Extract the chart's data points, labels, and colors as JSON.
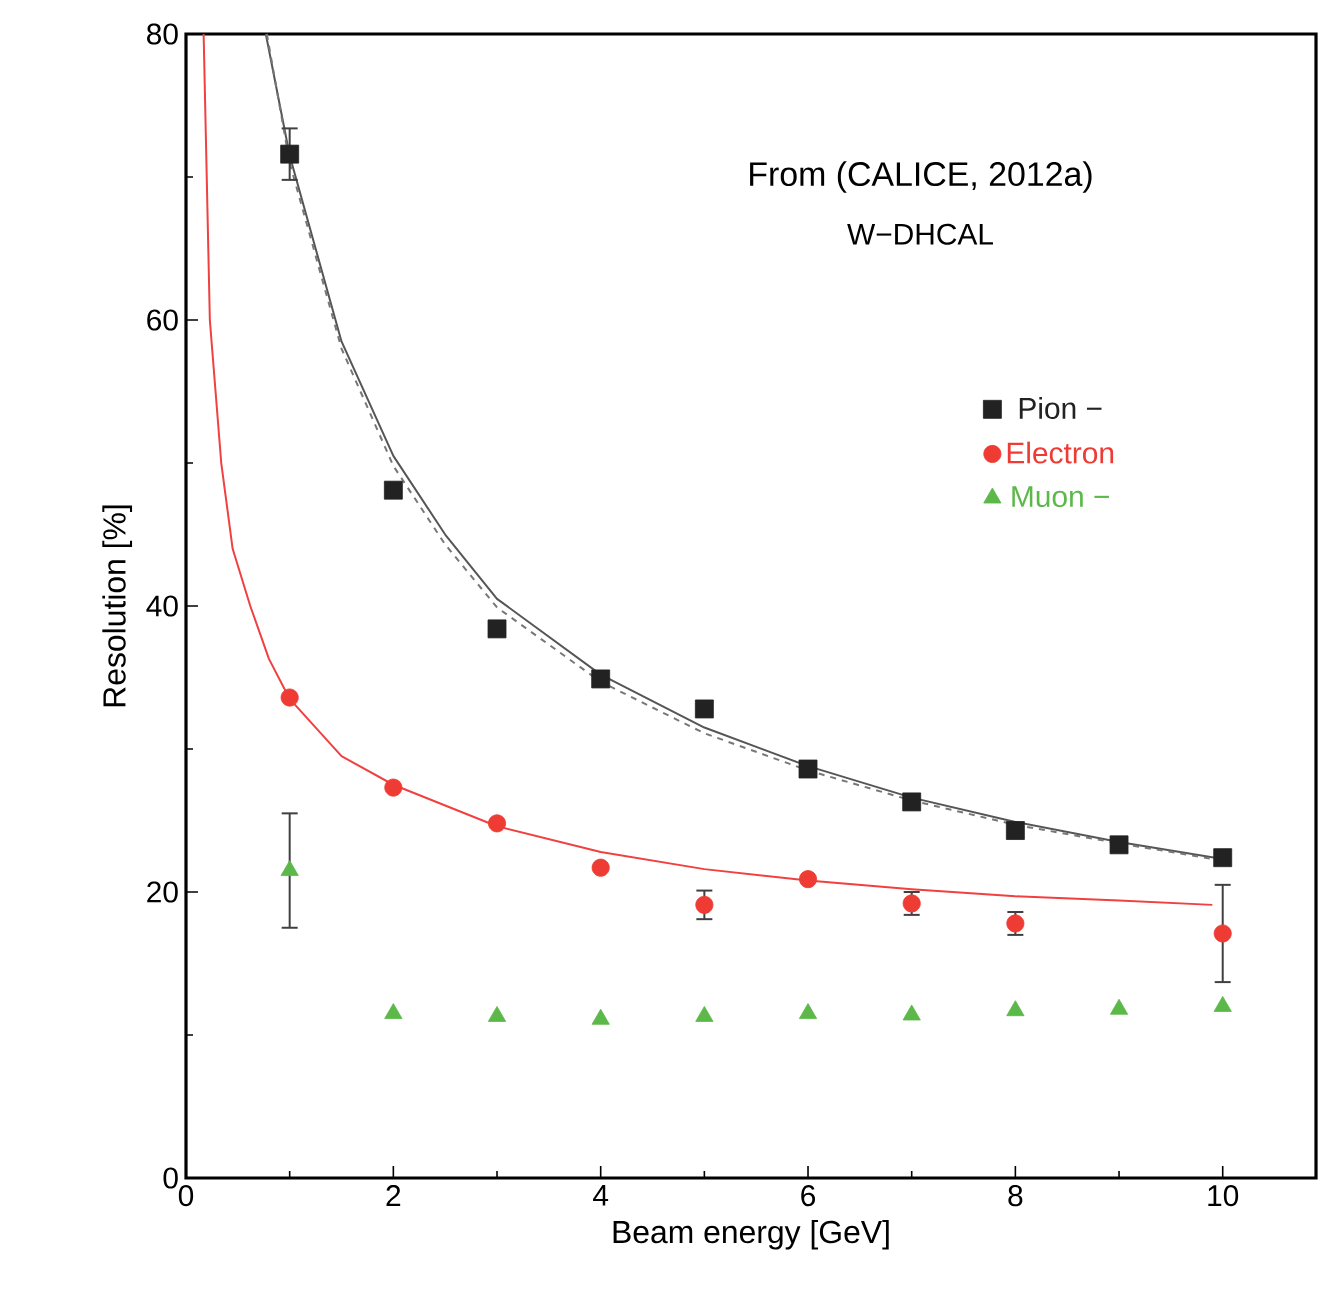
{
  "chart_data": {
    "type": "scatter",
    "xlabel": "Beam energy [GeV]",
    "ylabel": "Resolution [%]",
    "annotations": [
      "From (CALICE, 2012a)",
      "W−DHCAL"
    ],
    "x": [
      1,
      2,
      3,
      4,
      5,
      6,
      7,
      8,
      9,
      10
    ],
    "xlim": [
      0,
      10.9
    ],
    "ylim": [
      0,
      80
    ],
    "xticks": [
      0,
      2,
      4,
      6,
      8,
      10
    ],
    "yticks": [
      0,
      20,
      40,
      60,
      80
    ],
    "grid": false,
    "legend": "right",
    "series": [
      {
        "name": "Pion −",
        "color": "#222222",
        "marker": "square",
        "values": [
          71.6,
          48.1,
          38.4,
          34.9,
          32.8,
          28.6,
          26.3,
          24.3,
          23.3,
          22.4
        ],
        "errors": [
          1.8,
          null,
          null,
          null,
          null,
          null,
          null,
          null,
          null,
          null
        ]
      },
      {
        "name": "Electron",
        "color": "#ee3b33",
        "marker": "circle",
        "values": [
          33.6,
          27.3,
          24.8,
          21.7,
          19.1,
          20.9,
          19.2,
          17.8,
          null,
          17.1
        ],
        "errors": [
          null,
          null,
          null,
          null,
          1.0,
          null,
          0.8,
          0.8,
          null,
          3.4
        ]
      },
      {
        "name": "Muon −",
        "color": "#5cb848",
        "marker": "triangle",
        "values": [
          21.5,
          11.5,
          11.3,
          11.1,
          11.3,
          11.5,
          11.4,
          11.7,
          11.8,
          12.0
        ],
        "errors": [
          4.0,
          null,
          null,
          null,
          null,
          null,
          null,
          null,
          null,
          null
        ]
      },
      {
        "type": "line",
        "color": "#555555",
        "line_style": "solid",
        "x": [
          0.77,
          1,
          1.5,
          2,
          2.5,
          3,
          4,
          5,
          6,
          7,
          8,
          9,
          10
        ],
        "values": [
          80,
          71.5,
          58.5,
          50.5,
          45,
          40.5,
          35.2,
          31.5,
          28.8,
          26.6,
          24.9,
          23.5,
          22.3
        ]
      },
      {
        "type": "line",
        "color": "#777777",
        "line_style": "dashed",
        "x": [
          0.78,
          1,
          1.5,
          2,
          2.5,
          3,
          4,
          5,
          6,
          7,
          8,
          9,
          10
        ],
        "values": [
          80,
          71,
          58,
          49.8,
          44.3,
          39.9,
          34.7,
          31.1,
          28.5,
          26.4,
          24.7,
          23.4,
          22.2
        ]
      },
      {
        "type": "line",
        "color": "#f04040",
        "line_style": "solid",
        "x": [
          0.17,
          0.23,
          0.34,
          0.45,
          0.62,
          0.8,
          1,
          1.5,
          2,
          3,
          4,
          5,
          6,
          7,
          8,
          9,
          9.9
        ],
        "values": [
          80,
          60,
          50,
          44,
          40,
          36.3,
          33.5,
          29.5,
          27.5,
          24.6,
          22.8,
          21.6,
          20.8,
          20.2,
          19.7,
          19.4,
          19.1
        ]
      }
    ]
  }
}
